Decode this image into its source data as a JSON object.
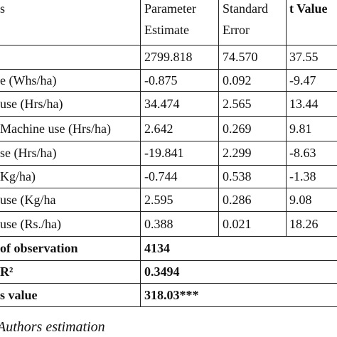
{
  "table": {
    "header": [
      [
        "s"
      ],
      [
        "Parameter",
        "Estimate"
      ],
      [
        "Standard",
        "Error"
      ],
      [
        "t Value"
      ]
    ],
    "rows": [
      [
        "",
        "2799.818",
        "74.570",
        "37.55"
      ],
      [
        "e (Whs/ha)",
        "-0.875",
        "0.092",
        "-9.47"
      ],
      [
        "use (Hrs/ha)",
        "34.474",
        "2.565",
        "13.44"
      ],
      [
        "Machine use (Hrs/ha)",
        "2.642",
        "0.269",
        "9.81"
      ],
      [
        "se (Hrs/ha)",
        "-19.841",
        "2.299",
        "-8.63"
      ],
      [
        "Kg/ha)",
        "-0.744",
        "0.538",
        "-1.38"
      ],
      [
        "use (Kg/ha",
        "2.595",
        "0.286",
        "9.08"
      ],
      [
        "use (Rs./ha)",
        "0.388",
        "0.021",
        "18.26"
      ]
    ],
    "summary": [
      [
        "of observation",
        "4134"
      ],
      [
        "R²",
        "0.3494"
      ],
      [
        "s value",
        "318.03***"
      ]
    ],
    "note": "Authors estimation"
  }
}
